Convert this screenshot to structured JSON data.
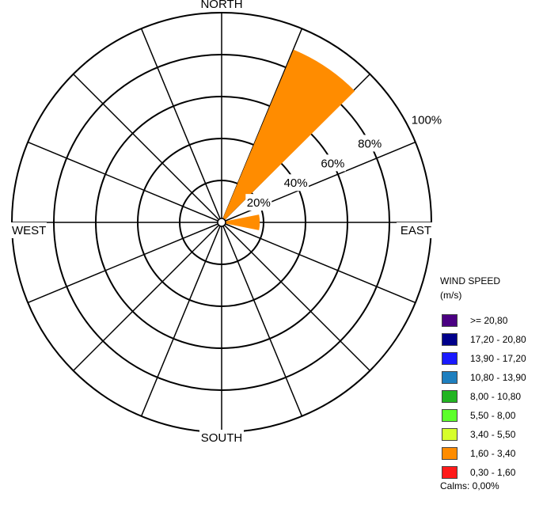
{
  "chart_data": {
    "type": "windrose",
    "directions": 16,
    "ring_labels": [
      "20%",
      "40%",
      "60%",
      "80%",
      "100%"
    ],
    "rmax_percent": 100,
    "compass_labels": {
      "north": "NORTH",
      "east": "EAST",
      "south": "SOUTH",
      "west": "WEST"
    },
    "petals": [
      {
        "direction_deg": 34,
        "speed_bin": "1,60 - 3,40",
        "percent": 89,
        "color": "#ff8c00"
      },
      {
        "direction_deg": 90,
        "speed_bin": "1,60 - 3,40",
        "percent": 18,
        "color": "#ff8c00"
      }
    ],
    "legend": {
      "title": "WIND SPEED",
      "unit": "(m/s)",
      "items": [
        {
          "label": ">= 20,80",
          "color": "#4b0082"
        },
        {
          "label": "17,20 - 20,80",
          "color": "#00008b"
        },
        {
          "label": "13,90 - 17,20",
          "color": "#1a1aff"
        },
        {
          "label": "10,80 - 13,90",
          "color": "#1e7fbf"
        },
        {
          "label": "8,00 - 10,80",
          "color": "#22b422"
        },
        {
          "label": "5,50 - 8,00",
          "color": "#5cff2a"
        },
        {
          "label": "3,40 - 5,50",
          "color": "#d6ff2a"
        },
        {
          "label": "1,60 - 3,40",
          "color": "#ff8c00"
        },
        {
          "label": "0,30 - 1,60",
          "color": "#ff1a1a"
        }
      ],
      "calms": "Calms: 0,00%"
    }
  }
}
